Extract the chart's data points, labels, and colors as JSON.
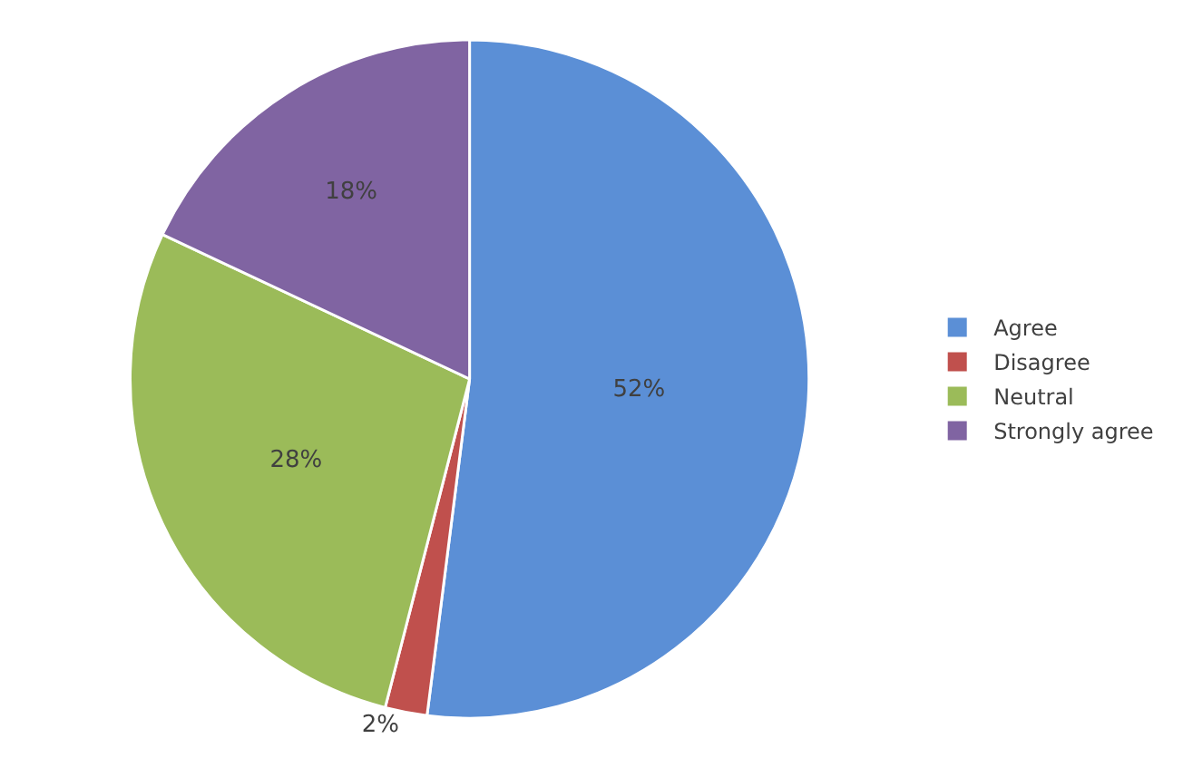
{
  "chart_data": {
    "type": "pie",
    "categories": [
      "Agree",
      "Disagree",
      "Neutral",
      "Strongly agree"
    ],
    "values": [
      52,
      2,
      28,
      18
    ],
    "colors": [
      "#5b8fd6",
      "#c0504d",
      "#9bbb59",
      "#8064a2"
    ],
    "value_labels": [
      "52%",
      "2%",
      "28%",
      "18%"
    ],
    "legend": "right"
  }
}
